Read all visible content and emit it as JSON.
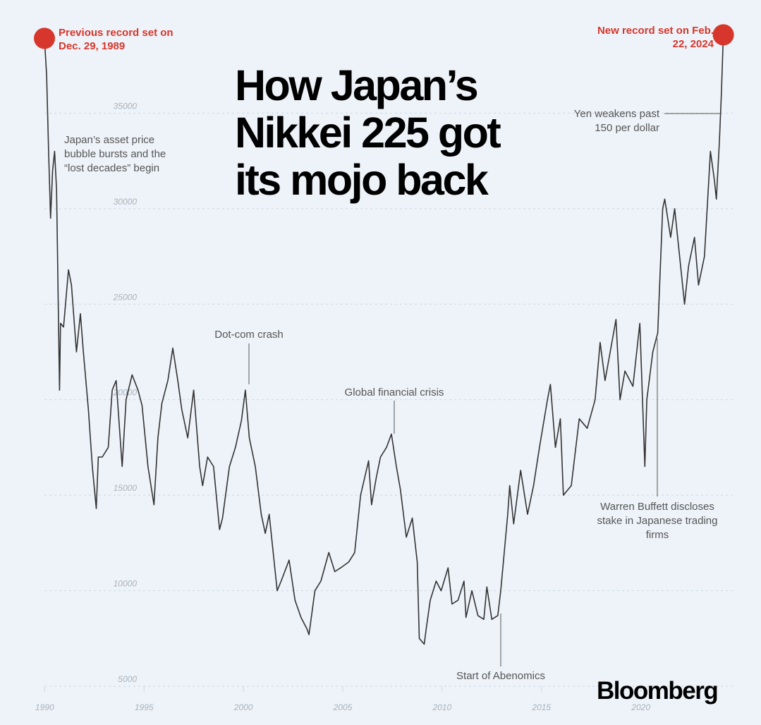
{
  "chart_data": {
    "type": "line",
    "title": "How Japan’s Nikkei 225 got its mojo back",
    "logo": "Bloomberg",
    "color": "#333333",
    "highlight_color": "#d6362b",
    "xlim": [
      1989.99,
      2024.2
    ],
    "xticks": [
      1990,
      1995,
      2000,
      2005,
      2010,
      2015,
      2020
    ],
    "ylim": [
      5000,
      40000
    ],
    "yticks": [
      5000,
      10000,
      15000,
      20000,
      25000,
      30000,
      35000
    ],
    "grid": true,
    "annotations": [
      "Previous record set on Dec. 29, 1989",
      "New record set on Feb. 22, 2024",
      "Japan’s asset price bubble bursts and the “lost decades” begin",
      "Yen weakens past 150 per dollar",
      "Dot-com crash",
      "Global financial crisis",
      "Start of Abenomics",
      "Warren Buffett discloses stake in Japanese trading firms"
    ],
    "x": [
      1989.99,
      1990.1,
      1990.2,
      1990.3,
      1990.4,
      1990.5,
      1990.6,
      1990.75,
      1990.8,
      1990.95,
      1991.2,
      1991.35,
      1991.6,
      1991.8,
      1991.95,
      1992.2,
      1992.4,
      1992.6,
      1992.7,
      1992.9,
      1993.2,
      1993.4,
      1993.6,
      1993.9,
      1994.1,
      1994.4,
      1994.7,
      1994.9,
      1995.2,
      1995.5,
      1995.7,
      1995.9,
      1996.2,
      1996.45,
      1996.7,
      1996.9,
      1997.2,
      1997.5,
      1997.8,
      1997.95,
      1998.2,
      1998.5,
      1998.8,
      1998.95,
      1999.3,
      1999.6,
      1999.9,
      2000.1,
      2000.3,
      2000.6,
      2000.9,
      2001.1,
      2001.3,
      2001.7,
      2001.9,
      2002.3,
      2002.6,
      2002.9,
      2003.2,
      2003.3,
      2003.6,
      2003.9,
      2004.3,
      2004.6,
      2004.9,
      2005.3,
      2005.6,
      2005.9,
      2006.3,
      2006.45,
      2006.7,
      2006.9,
      2007.2,
      2007.45,
      2007.7,
      2007.9,
      2008.2,
      2008.5,
      2008.75,
      2008.85,
      2009.1,
      2009.2,
      2009.4,
      2009.7,
      2009.95,
      2010.3,
      2010.5,
      2010.8,
      2011.1,
      2011.2,
      2011.5,
      2011.8,
      2012.1,
      2012.25,
      2012.5,
      2012.8,
      2012.95,
      2013.3,
      2013.4,
      2013.6,
      2013.95,
      2014.3,
      2014.6,
      2014.9,
      2015.3,
      2015.45,
      2015.7,
      2015.95,
      2016.1,
      2016.5,
      2016.9,
      2017.3,
      2017.7,
      2017.95,
      2018.2,
      2018.75,
      2018.95,
      2019.2,
      2019.6,
      2019.95,
      2020.2,
      2020.3,
      2020.6,
      2020.85,
      2021.1,
      2021.2,
      2021.5,
      2021.7,
      2021.9,
      2022.2,
      2022.4,
      2022.7,
      2022.9,
      2023.2,
      2023.5,
      2023.7,
      2023.8,
      2023.95,
      2024.05,
      2024.15
    ],
    "values": [
      38916,
      37000,
      33000,
      29500,
      32000,
      33000,
      31000,
      20500,
      24000,
      23800,
      26800,
      26000,
      22500,
      24500,
      22500,
      19500,
      16500,
      14300,
      17000,
      17000,
      17500,
      20500,
      21000,
      16500,
      20000,
      21300,
      20500,
      19700,
      16500,
      14500,
      18000,
      19800,
      21000,
      22700,
      21000,
      19500,
      18000,
      20500,
      16500,
      15500,
      17000,
      16500,
      13200,
      13800,
      16500,
      17500,
      18900,
      20500,
      18000,
      16500,
      14000,
      13000,
      14000,
      10000,
      10500,
      11600,
      9500,
      8600,
      8000,
      7700,
      10000,
      10500,
      12000,
      11000,
      11200,
      11500,
      12000,
      15000,
      16800,
      14500,
      16000,
      17000,
      17500,
      18200,
      16500,
      15300,
      12800,
      13800,
      11500,
      7500,
      7200,
      8000,
      9500,
      10500,
      10000,
      11200,
      9300,
      9500,
      10500,
      8600,
      10000,
      8700,
      8500,
      10200,
      8500,
      8700,
      10000,
      14000,
      15500,
      13500,
      16300,
      14000,
      15500,
      17500,
      20000,
      20800,
      17500,
      19000,
      15000,
      15500,
      19000,
      18500,
      20000,
      23000,
      21000,
      24200,
      20000,
      21500,
      20700,
      24000,
      16500,
      20000,
      22500,
      23500,
      30000,
      30500,
      28500,
      30000,
      28000,
      25000,
      27000,
      28500,
      26000,
      27500,
      33000,
      31500,
      30500,
      33500,
      36000,
      39100
    ]
  }
}
